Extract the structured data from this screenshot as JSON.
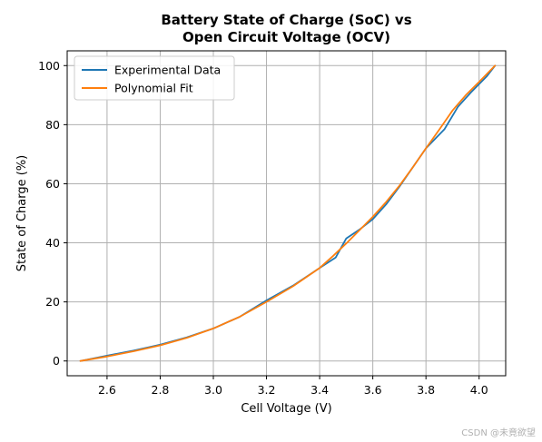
{
  "chart_data": {
    "type": "line",
    "title": "Battery State of Charge (SoC) vs\nOpen Circuit Voltage (OCV)",
    "title_lines": [
      "Battery State of Charge (SoC) vs",
      "Open Circuit Voltage (OCV)"
    ],
    "xlabel": "Cell Voltage (V)",
    "ylabel": "State of Charge (%)",
    "xlim": [
      2.45,
      4.1
    ],
    "ylim": [
      -5,
      105
    ],
    "x_ticks": [
      2.6,
      2.8,
      3.0,
      3.2,
      3.4,
      3.6,
      3.8,
      4.0
    ],
    "y_ticks": [
      0,
      20,
      40,
      60,
      80,
      100
    ],
    "x_tick_labels": [
      "2.6",
      "2.8",
      "3.0",
      "3.2",
      "3.4",
      "3.6",
      "3.8",
      "4.0"
    ],
    "y_tick_labels": [
      "0",
      "20",
      "40",
      "60",
      "80",
      "100"
    ],
    "grid": true,
    "legend_position": "top-left",
    "series": [
      {
        "name": "Experimental Data",
        "color": "#1f77b4",
        "x": [
          2.5,
          2.6,
          2.7,
          2.8,
          2.9,
          3.0,
          3.1,
          3.2,
          3.3,
          3.4,
          3.46,
          3.5,
          3.55,
          3.6,
          3.65,
          3.7,
          3.75,
          3.8,
          3.87,
          3.92,
          3.97,
          4.03,
          4.06
        ],
        "y": [
          0,
          1.8,
          3.5,
          5.5,
          8.0,
          11.0,
          15.0,
          20.5,
          25.5,
          31.5,
          35.0,
          41.5,
          44.5,
          48.0,
          53.0,
          59.0,
          65.5,
          72.0,
          78.5,
          86.0,
          91.0,
          96.5,
          100
        ]
      },
      {
        "name": "Polynomial Fit",
        "color": "#ff7f0e",
        "x": [
          2.5,
          2.6,
          2.7,
          2.8,
          2.9,
          3.0,
          3.1,
          3.2,
          3.3,
          3.4,
          3.45,
          3.5,
          3.55,
          3.6,
          3.65,
          3.7,
          3.75,
          3.8,
          3.85,
          3.9,
          3.95,
          4.0,
          4.06
        ],
        "y": [
          0,
          1.5,
          3.3,
          5.3,
          7.8,
          11.0,
          15.0,
          20.0,
          25.3,
          31.5,
          35.5,
          39.8,
          44.3,
          48.8,
          53.8,
          59.3,
          65.5,
          72.0,
          78.3,
          84.8,
          90.0,
          94.5,
          100
        ]
      }
    ]
  },
  "watermark": "CSDN @未竟欲望"
}
